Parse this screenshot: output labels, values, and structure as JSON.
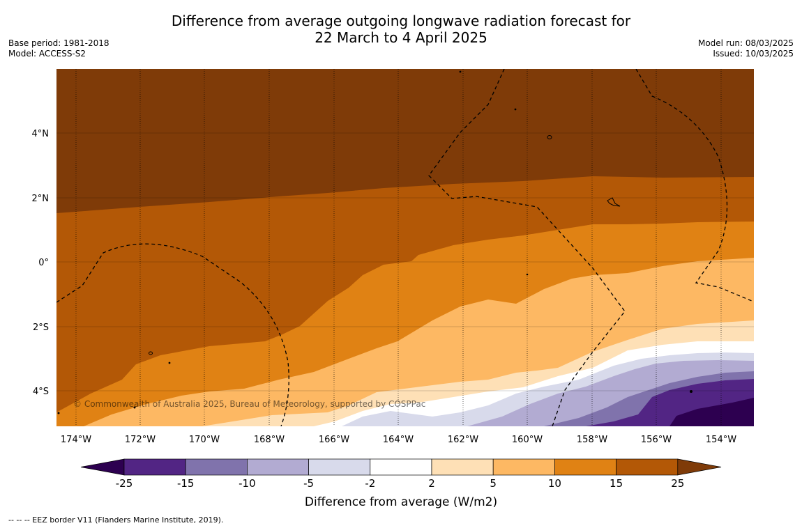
{
  "header": {
    "title_line1": "Difference from average outgoing longwave radiation forecast for",
    "title_line2": "22 March to 4 April 2025",
    "base_period": "Base period: 1981-2018",
    "model": "Model: ACCESS-S2",
    "model_run": "Model run: 08/03/2025",
    "issued": "Issued: 10/03/2025"
  },
  "map": {
    "copyright": "© Commonwealth of Australia 2025, Bureau of Meteorology, supported by COSPPac",
    "lon_labels": [
      "174°W",
      "172°W",
      "170°W",
      "168°W",
      "166°W",
      "164°W",
      "162°W",
      "160°W",
      "158°W",
      "156°W",
      "154°W"
    ],
    "lat_labels": [
      "4°N",
      "2°N",
      "0°",
      "2°S",
      "4°S"
    ],
    "lon_range_deg": [
      -174.6,
      -153.0
    ],
    "lat_range_deg": [
      -5.2,
      6.0
    ]
  },
  "colorbar": {
    "label": "Difference from average (W/m2)",
    "ticks": [
      "-25",
      "-15",
      "-10",
      "-5",
      "-2",
      "2",
      "5",
      "10",
      "15",
      "25"
    ],
    "colors": [
      "#2d0050",
      "#522584",
      "#8073ac",
      "#b2abd2",
      "#d8daeb",
      "#ffffff",
      "#fee0b6",
      "#fdb863",
      "#e08214",
      "#b35806",
      "#7f3b08"
    ]
  },
  "footnote": "--  --  -- EEZ border V11 (Flanders Marine Institute, 2019)."
}
